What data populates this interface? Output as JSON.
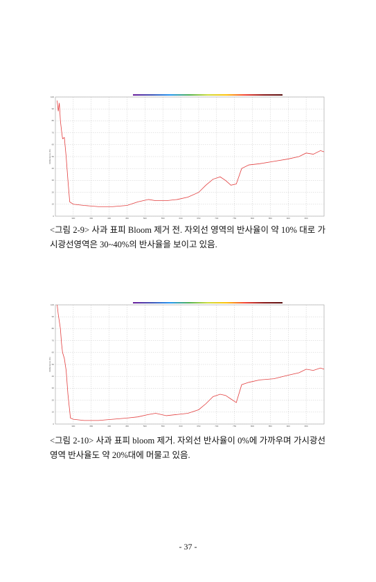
{
  "chart_data": [
    {
      "type": "line",
      "ylabel": "Reflectance (%)",
      "x": [
        255,
        258,
        261,
        264,
        267,
        270,
        275,
        280,
        285,
        290,
        300,
        330,
        370,
        410,
        450,
        480,
        510,
        530,
        560,
        590,
        620,
        650,
        670,
        690,
        710,
        725,
        740,
        755,
        770,
        790,
        820,
        860,
        900,
        930,
        950,
        970,
        990,
        1000
      ],
      "series": [
        {
          "name": "Reflectance",
          "color": "#e23c3c",
          "values": [
            97,
            88,
            95,
            80,
            72,
            65,
            66,
            50,
            30,
            12,
            10,
            9,
            8,
            8,
            9,
            12,
            14,
            13,
            13,
            14,
            16,
            20,
            26,
            31,
            33,
            30,
            26,
            27,
            40,
            43,
            44,
            46,
            48,
            50,
            53,
            52,
            55,
            54
          ]
        }
      ],
      "xlim": [
        250,
        1000
      ],
      "xticks": [
        300,
        350,
        400,
        450,
        500,
        550,
        600,
        650,
        700,
        750,
        800,
        850,
        900,
        950
      ],
      "ylim": [
        0,
        100
      ],
      "yticks": [
        0,
        10,
        20,
        30,
        40,
        50,
        60,
        70,
        80,
        90,
        100
      ],
      "grid": true
    },
    {
      "type": "line",
      "ylabel": "Reflectance (%)",
      "x": [
        255,
        258,
        261,
        264,
        267,
        270,
        275,
        280,
        285,
        292,
        300,
        330,
        370,
        410,
        450,
        480,
        510,
        530,
        560,
        590,
        620,
        650,
        670,
        690,
        710,
        725,
        740,
        755,
        770,
        790,
        820,
        860,
        900,
        930,
        950,
        970,
        990,
        1000
      ],
      "series": [
        {
          "name": "Reflectance",
          "color": "#e23c3c",
          "values": [
            100,
            92,
            86,
            80,
            68,
            60,
            55,
            45,
            25,
            5,
            4,
            3,
            3,
            4,
            5,
            6,
            8,
            9,
            7,
            8,
            9,
            12,
            17,
            23,
            25,
            24,
            21,
            18,
            33,
            35,
            37,
            38,
            41,
            43,
            46,
            45,
            47,
            46
          ]
        }
      ],
      "xlim": [
        250,
        1000
      ],
      "xticks": [
        300,
        350,
        400,
        450,
        500,
        550,
        600,
        650,
        700,
        750,
        800,
        850,
        900,
        950
      ],
      "ylim": [
        0,
        100
      ],
      "yticks": [
        0,
        10,
        20,
        30,
        40,
        50,
        60,
        70,
        80,
        90,
        100
      ],
      "grid": true
    }
  ],
  "captions": [
    "<그림 2-9> 사과 표피 Bloom 제거 전. 자외선 영역의 반사율이 약 10% 대로 가시광선영역은  30~40%의 반사율을 보이고 있음.",
    "<그림 2-10> 사과 표피 bloom 제거. 자외선 반사율이 0%에 가까우며 가시광선 영역 반사율도 약 20%대에 머물고 있음."
  ],
  "page_number": "- 37 -"
}
